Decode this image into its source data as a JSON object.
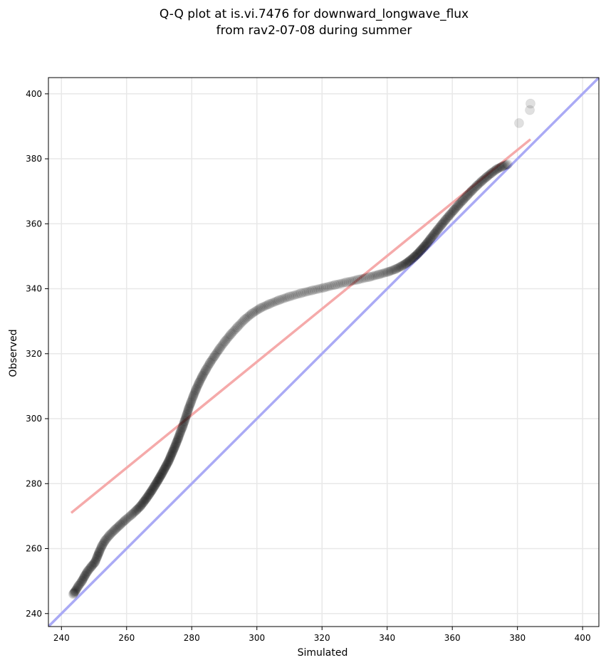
{
  "chart_data": {
    "type": "scatter",
    "title": [
      "Q-Q plot at is.vi.7476 for downward_longwave_flux",
      "from rav2-07-08 during summer"
    ],
    "xlabel": "Simulated",
    "ylabel": "Observed",
    "xlim": [
      236,
      405
    ],
    "ylim": [
      236,
      405
    ],
    "xticks": [
      240,
      260,
      280,
      300,
      320,
      340,
      360,
      380,
      400
    ],
    "yticks": [
      240,
      260,
      280,
      300,
      320,
      340,
      360,
      380,
      400
    ],
    "grid": true,
    "colors": {
      "points": "#000000",
      "identity_line": "#aaaaf5",
      "fit_line": "#f5aaaa",
      "grid": "#e8e8e8"
    },
    "series": [
      {
        "kind": "points",
        "x": [
          243.6,
          244.3,
          245.2,
          246.3,
          247.1,
          248.0,
          249.2,
          250.3,
          251.0,
          251.6,
          252.4,
          253.4,
          254.8,
          256.4,
          258.0,
          259.6,
          261.5,
          263.0,
          264.2,
          265.2,
          266.1,
          267.0,
          267.8,
          268.6,
          269.4,
          270.1,
          270.8,
          271.5,
          272.2,
          272.9,
          273.5,
          274.1,
          274.7,
          275.3,
          275.9,
          276.5,
          277.2,
          277.8,
          278.4,
          279.0,
          279.7,
          280.5,
          281.3,
          282.2,
          283.2,
          284.3,
          285.6,
          287.0,
          288.5,
          290.2,
          292.0,
          294.0,
          296.2,
          298.5,
          301.0,
          303.8,
          306.8,
          310.0,
          313.5,
          317.0,
          320.5,
          324.0,
          327.5,
          331.0,
          334.5,
          337.5,
          340.3,
          342.5,
          344.3,
          345.8,
          347.0,
          348.2,
          349.3,
          350.3,
          351.3,
          352.3,
          353.3,
          354.4,
          355.5,
          356.7,
          357.9,
          359.2,
          360.5,
          361.8,
          363.2,
          364.6,
          366.0,
          367.5,
          369.0,
          370.5,
          372.0,
          373.6,
          375.2,
          377.0,
          380.5,
          383.8
        ],
        "y": [
          246.0,
          247.0,
          248.5,
          250.0,
          251.5,
          253.0,
          254.5,
          255.8,
          257.5,
          259.0,
          260.8,
          262.5,
          264.2,
          265.8,
          267.3,
          268.8,
          270.4,
          271.8,
          273.0,
          274.3,
          275.5,
          276.8,
          278.0,
          279.3,
          280.6,
          281.8,
          283.0,
          284.3,
          285.6,
          286.9,
          288.3,
          289.7,
          291.1,
          292.6,
          294.1,
          295.8,
          297.5,
          299.3,
          301.1,
          303.0,
          304.9,
          307.0,
          309.0,
          311.0,
          313.0,
          315.0,
          317.2,
          319.3,
          321.5,
          323.8,
          326.0,
          328.2,
          330.5,
          332.4,
          334.0,
          335.3,
          336.5,
          337.6,
          338.6,
          339.5,
          340.3,
          341.2,
          342.0,
          342.8,
          343.6,
          344.4,
          345.2,
          346.0,
          346.9,
          347.8,
          348.7,
          349.7,
          350.7,
          351.8,
          352.9,
          354.1,
          355.4,
          356.8,
          358.2,
          359.7,
          361.2,
          362.7,
          364.2,
          365.7,
          367.2,
          368.7,
          370.2,
          371.7,
          373.1,
          374.4,
          375.6,
          376.8,
          377.6,
          378.3,
          391.0,
          395.0
        ],
        "extra_points": [
          [
            384.0,
            397.0
          ]
        ]
      },
      {
        "kind": "identity_line",
        "x": [
          236,
          405
        ],
        "y": [
          236,
          405
        ]
      },
      {
        "kind": "fit_line",
        "x": [
          243.0,
          384.0
        ],
        "y": [
          271.0,
          386.0
        ]
      }
    ]
  }
}
